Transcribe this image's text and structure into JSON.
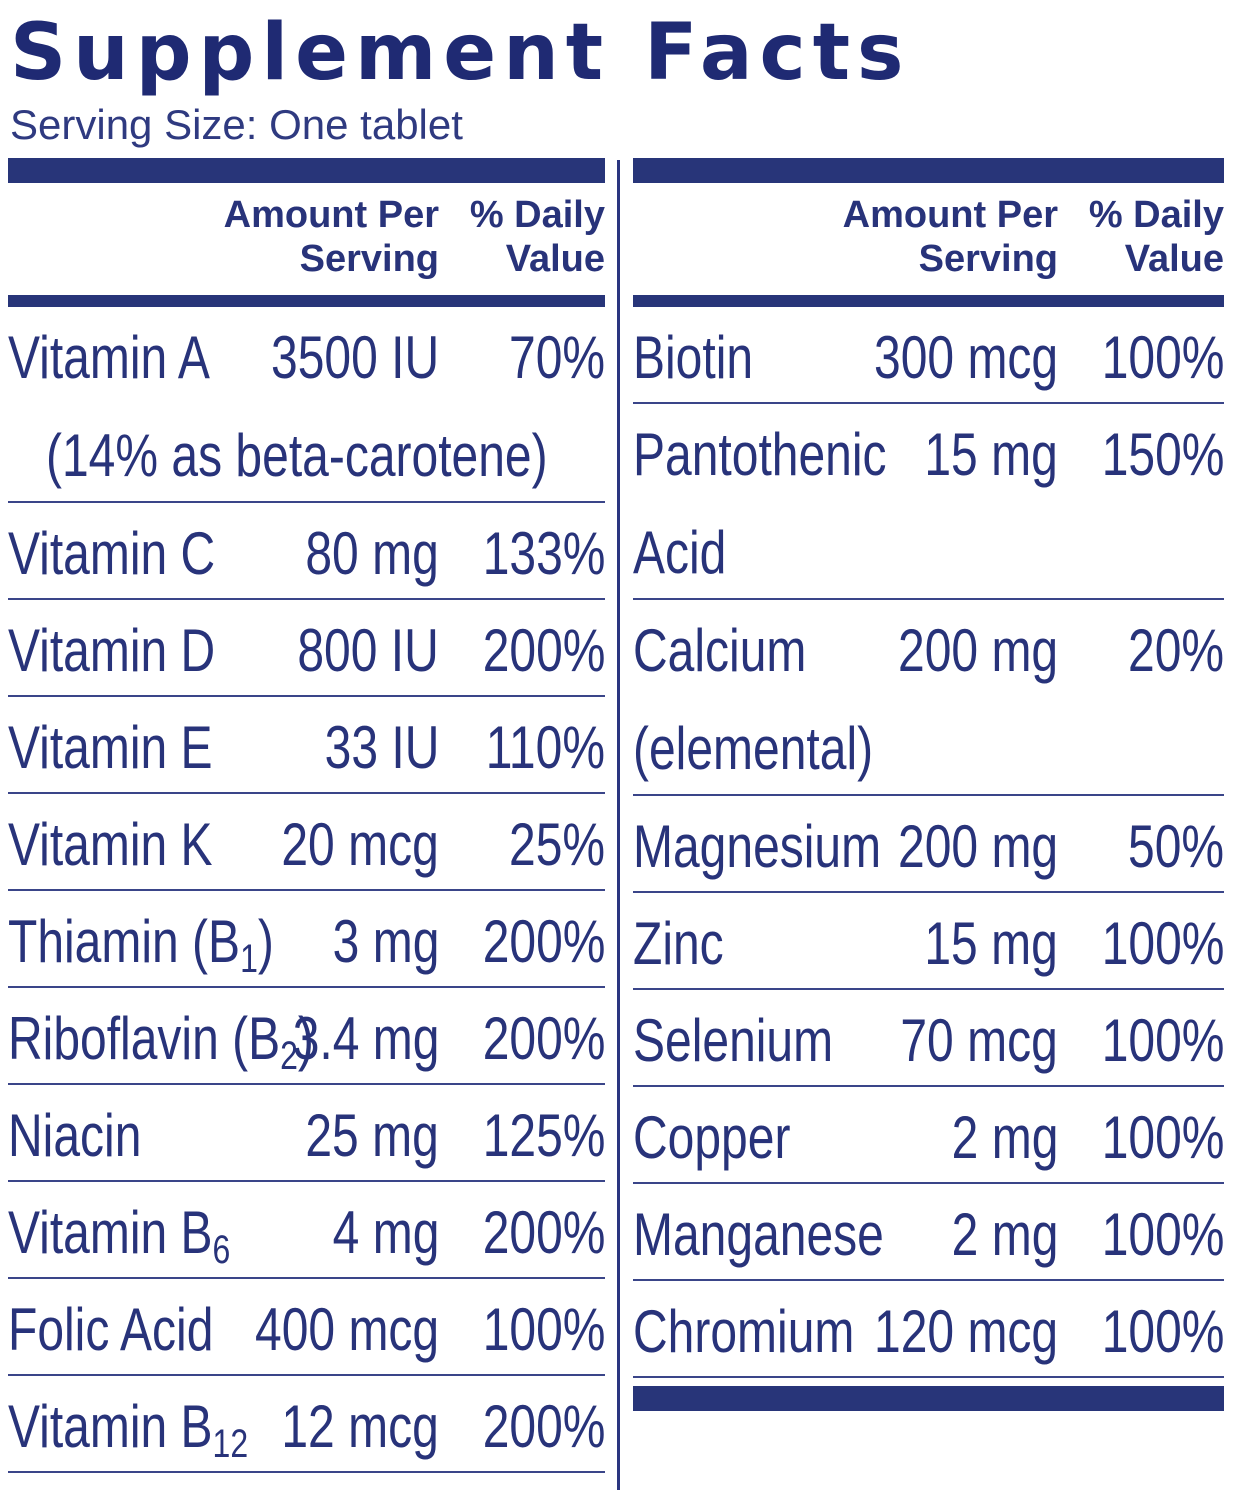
{
  "title": "Supplement Facts",
  "serving_size": "Serving Size: One tablet",
  "header": {
    "amount_line1": "Amount Per",
    "amount_line2": "Serving",
    "dv_line1": "% Daily",
    "dv_line2": "Value"
  },
  "left_rows": [
    {
      "name": "Vitamin A",
      "sub": "",
      "name2": "(14% as beta-carotene)",
      "amount": "3500 IU",
      "dv": "70%"
    },
    {
      "name": "Vitamin C",
      "sub": "",
      "name2": "",
      "amount": "80 mg",
      "dv": "133%"
    },
    {
      "name": "Vitamin D",
      "sub": "",
      "name2": "",
      "amount": "800 IU",
      "dv": "200%"
    },
    {
      "name": "Vitamin E",
      "sub": "",
      "name2": "",
      "amount": "33 IU",
      "dv": "110%"
    },
    {
      "name": "Vitamin K",
      "sub": "",
      "name2": "",
      "amount": "20 mcg",
      "dv": "25%"
    },
    {
      "name": "Thiamin (B",
      "sub": "1",
      "suffix": ")",
      "name2": "",
      "amount": "3 mg",
      "dv": "200%"
    },
    {
      "name": "Riboflavin (B",
      "sub": "2",
      "suffix": ")",
      "name2": "",
      "amount": "3.4 mg",
      "dv": "200%"
    },
    {
      "name": "Niacin",
      "sub": "",
      "name2": "",
      "amount": "25 mg",
      "dv": "125%"
    },
    {
      "name": "Vitamin B",
      "sub": "6",
      "name2": "",
      "amount": "4 mg",
      "dv": "200%"
    },
    {
      "name": "Folic Acid",
      "sub": "",
      "name2": "",
      "amount": "400 mcg",
      "dv": "100%"
    },
    {
      "name": "Vitamin B",
      "sub": "12",
      "name2": "",
      "amount": "12 mcg",
      "dv": "200%"
    }
  ],
  "right_rows": [
    {
      "name": "Biotin",
      "sub": "",
      "name2": "",
      "amount": "300 mcg",
      "dv": "100%"
    },
    {
      "name": "Pantothenic",
      "sub": "",
      "name2": "Acid",
      "amount": "15 mg",
      "dv": "150%"
    },
    {
      "name": "Calcium",
      "sub": "",
      "name2": "(elemental)",
      "amount": "200 mg",
      "dv": "20%"
    },
    {
      "name": "Magnesium",
      "sub": "",
      "name2": "",
      "amount": "200 mg",
      "dv": "50%"
    },
    {
      "name": "Zinc",
      "sub": "",
      "name2": "",
      "amount": "15 mg",
      "dv": "100%"
    },
    {
      "name": "Selenium",
      "sub": "",
      "name2": "",
      "amount": "70 mcg",
      "dv": "100%"
    },
    {
      "name": "Copper",
      "sub": "",
      "name2": "",
      "amount": "2 mg",
      "dv": "100%"
    },
    {
      "name": "Manganese",
      "sub": "",
      "name2": "",
      "amount": "2 mg",
      "dv": "100%"
    },
    {
      "name": "Chromium",
      "sub": "",
      "name2": "",
      "amount": "120 mcg",
      "dv": "100%"
    }
  ]
}
